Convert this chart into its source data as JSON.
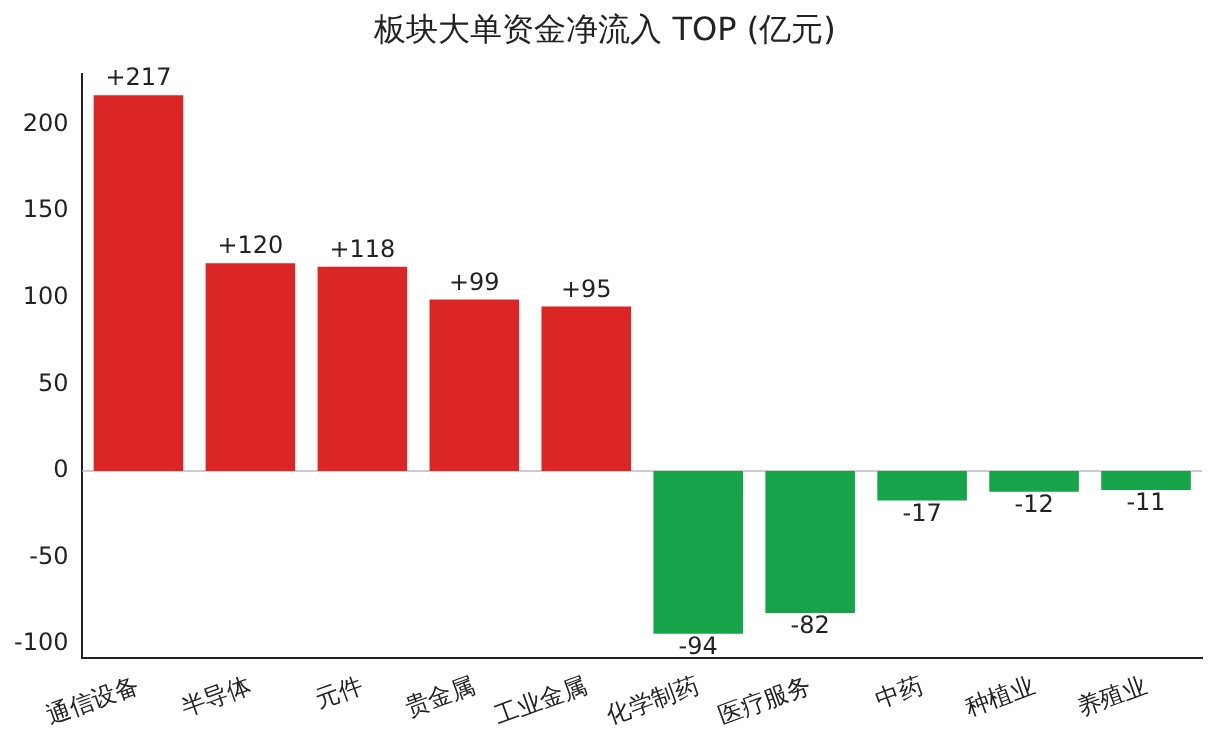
{
  "chart_data": {
    "type": "bar",
    "title": "板块大单资金净流入 TOP (亿元)",
    "categories": [
      "通信设备",
      "半导体",
      "元件",
      "贵金属",
      "工业金属",
      "化学制药",
      "医疗服务",
      "中药",
      "种植业",
      "养殖业"
    ],
    "values": [
      217,
      120,
      118,
      99,
      95,
      -94,
      -82,
      -17,
      -12,
      -11
    ],
    "colors": [
      "#dc2626",
      "#dc2626",
      "#dc2626",
      "#dc2626",
      "#dc2626",
      "#16a34a",
      "#16a34a",
      "#16a34a",
      "#16a34a",
      "#16a34a"
    ],
    "value_labels": [
      "+217",
      "+120",
      "+118",
      "+99",
      "+95",
      "-94",
      "-82",
      "-17",
      "-12",
      "-11"
    ],
    "ylim": [
      -108,
      229
    ],
    "yticks": [
      -100,
      -50,
      0,
      50,
      100,
      150,
      200
    ],
    "ref_lines": [
      {
        "axis": "y",
        "value": 0,
        "color": "#cccccc"
      }
    ],
    "grid": false,
    "legend": false
  }
}
